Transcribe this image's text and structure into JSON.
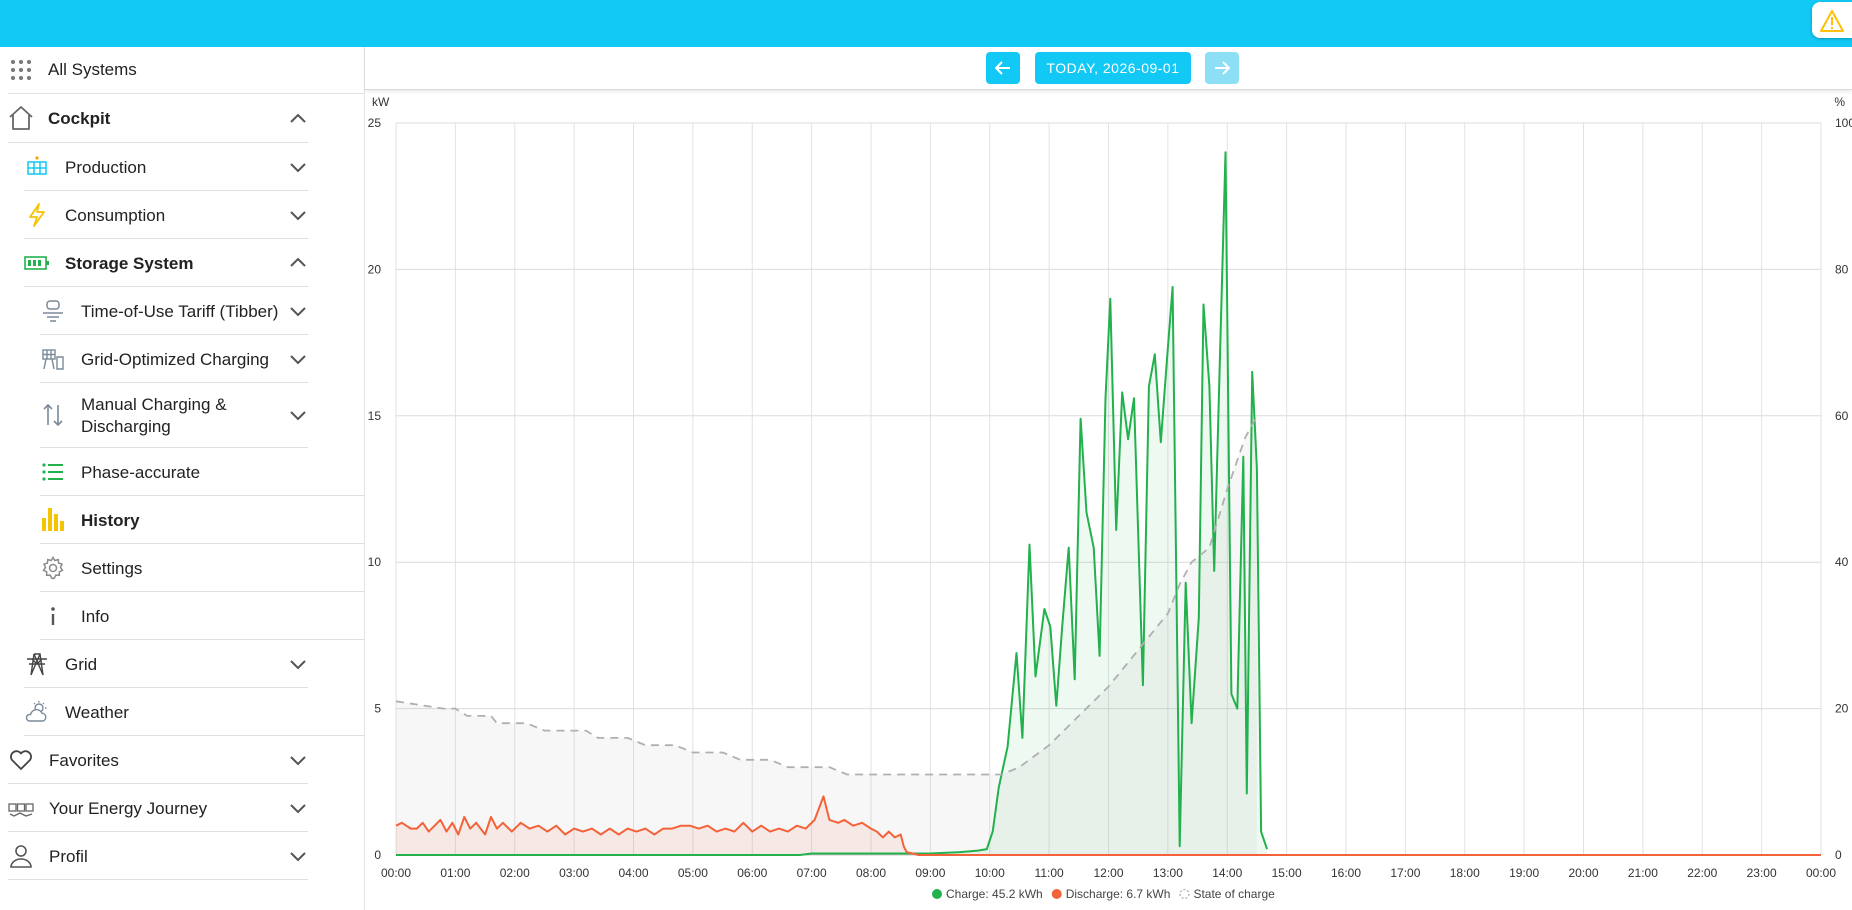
{
  "colors": {
    "accent": "#12c9f5",
    "charge": "#22b14c",
    "discharge": "#f4623a",
    "soc": "#b0b0b0",
    "warning": "#ffc107"
  },
  "header": {
    "warning_icon": "warning-icon"
  },
  "sidebar": {
    "all_systems": "All Systems",
    "cockpit": "Cockpit",
    "production": "Production",
    "consumption": "Consumption",
    "storage_system": "Storage System",
    "tou_tariff": "Time-of-Use Tariff (Tibber)",
    "grid_optimized": "Grid-Optimized Charging",
    "manual_charging_line1": "Manual Charging &",
    "manual_charging_line2": "Discharging",
    "phase_accurate": "Phase-accurate",
    "history": "History",
    "settings": "Settings",
    "info": "Info",
    "grid": "Grid",
    "weather": "Weather",
    "favorites": "Favorites",
    "energy_journey": "Your Energy Journey",
    "profil": "Profil"
  },
  "date_nav": {
    "label": "TODAY, 2026-09-01"
  },
  "chart_data": {
    "type": "line",
    "left_unit": "kW",
    "right_unit": "%",
    "ylim_left": [
      0,
      25
    ],
    "ylim_right": [
      0,
      100
    ],
    "y_ticks_left": [
      "0",
      "5",
      "10",
      "15",
      "20",
      "25"
    ],
    "y_ticks_right": [
      "0",
      "20",
      "40",
      "60",
      "80",
      "100"
    ],
    "x_ticks": [
      "00:00",
      "01:00",
      "02:00",
      "03:00",
      "04:00",
      "05:00",
      "06:00",
      "07:00",
      "08:00",
      "09:00",
      "10:00",
      "11:00",
      "12:00",
      "13:00",
      "14:00",
      "15:00",
      "16:00",
      "17:00",
      "18:00",
      "19:00",
      "20:00",
      "21:00",
      "22:00",
      "23:00",
      "00:00"
    ],
    "x_range_hours": [
      0,
      24
    ],
    "grid": true,
    "legend_position": "bottom",
    "legend": {
      "charge": "Charge: 45.2 kWh",
      "discharge": "Discharge: 6.7 kWh",
      "soc": "State of charge"
    },
    "series": [
      {
        "name": "Charge: 45.2 kWh",
        "axis": "left",
        "points": [
          [
            0,
            0
          ],
          [
            6.8,
            0
          ],
          [
            7.0,
            0.05
          ],
          [
            9.0,
            0.05
          ],
          [
            9.5,
            0.1
          ],
          [
            9.8,
            0.15
          ],
          [
            9.95,
            0.2
          ],
          [
            10.05,
            0.8
          ],
          [
            10.15,
            2.3
          ],
          [
            10.3,
            3.7
          ],
          [
            10.45,
            6.9
          ],
          [
            10.55,
            4.0
          ],
          [
            10.67,
            10.6
          ],
          [
            10.77,
            6.1
          ],
          [
            10.92,
            8.4
          ],
          [
            11.02,
            7.8
          ],
          [
            11.12,
            5.1
          ],
          [
            11.22,
            7.8
          ],
          [
            11.33,
            10.5
          ],
          [
            11.43,
            6.0
          ],
          [
            11.53,
            14.9
          ],
          [
            11.63,
            11.7
          ],
          [
            11.75,
            10.5
          ],
          [
            11.85,
            6.8
          ],
          [
            11.95,
            15.6
          ],
          [
            12.03,
            19.0
          ],
          [
            12.13,
            11.1
          ],
          [
            12.23,
            15.8
          ],
          [
            12.33,
            14.2
          ],
          [
            12.43,
            15.6
          ],
          [
            12.58,
            5.8
          ],
          [
            12.68,
            16.0
          ],
          [
            12.78,
            17.1
          ],
          [
            12.88,
            14.1
          ],
          [
            12.98,
            16.8
          ],
          [
            13.08,
            19.4
          ],
          [
            13.2,
            0.3
          ],
          [
            13.3,
            9.3
          ],
          [
            13.4,
            4.5
          ],
          [
            13.52,
            8.1
          ],
          [
            13.6,
            18.8
          ],
          [
            13.7,
            16.0
          ],
          [
            13.78,
            9.7
          ],
          [
            13.88,
            17.2
          ],
          [
            13.97,
            24.0
          ],
          [
            14.07,
            5.5
          ],
          [
            14.17,
            5.0
          ],
          [
            14.27,
            13.6
          ],
          [
            14.33,
            2.1
          ],
          [
            14.42,
            16.5
          ],
          [
            14.5,
            13.2
          ],
          [
            14.57,
            0.8
          ],
          [
            14.67,
            0.2
          ]
        ]
      },
      {
        "name": "Discharge: 6.7 kWh",
        "axis": "left",
        "points": [
          [
            0,
            1.0
          ],
          [
            0.1,
            1.1
          ],
          [
            0.25,
            0.9
          ],
          [
            0.35,
            0.9
          ],
          [
            0.45,
            1.1
          ],
          [
            0.55,
            0.8
          ],
          [
            0.65,
            1.0
          ],
          [
            0.75,
            1.2
          ],
          [
            0.85,
            0.8
          ],
          [
            0.95,
            1.1
          ],
          [
            1.05,
            0.7
          ],
          [
            1.15,
            1.3
          ],
          [
            1.25,
            0.9
          ],
          [
            1.35,
            1.1
          ],
          [
            1.5,
            0.7
          ],
          [
            1.6,
            1.3
          ],
          [
            1.7,
            0.9
          ],
          [
            1.8,
            1.1
          ],
          [
            1.95,
            0.8
          ],
          [
            2.1,
            1.1
          ],
          [
            2.25,
            0.9
          ],
          [
            2.4,
            1.0
          ],
          [
            2.55,
            0.8
          ],
          [
            2.7,
            1.0
          ],
          [
            2.85,
            0.7
          ],
          [
            3.0,
            0.9
          ],
          [
            3.15,
            0.8
          ],
          [
            3.3,
            0.9
          ],
          [
            3.45,
            0.7
          ],
          [
            3.6,
            0.9
          ],
          [
            3.75,
            0.7
          ],
          [
            3.9,
            0.9
          ],
          [
            4.05,
            0.8
          ],
          [
            4.2,
            0.9
          ],
          [
            4.35,
            0.7
          ],
          [
            4.5,
            0.9
          ],
          [
            4.65,
            0.9
          ],
          [
            4.8,
            1.0
          ],
          [
            4.95,
            1.0
          ],
          [
            5.1,
            0.9
          ],
          [
            5.25,
            1.0
          ],
          [
            5.4,
            0.8
          ],
          [
            5.55,
            0.9
          ],
          [
            5.7,
            0.8
          ],
          [
            5.85,
            1.1
          ],
          [
            6.0,
            0.8
          ],
          [
            6.15,
            1.0
          ],
          [
            6.3,
            0.8
          ],
          [
            6.45,
            0.9
          ],
          [
            6.6,
            0.8
          ],
          [
            6.75,
            1.0
          ],
          [
            6.9,
            0.9
          ],
          [
            7.05,
            1.2
          ],
          [
            7.2,
            2.0
          ],
          [
            7.3,
            1.2
          ],
          [
            7.45,
            1.1
          ],
          [
            7.55,
            1.2
          ],
          [
            7.7,
            1.0
          ],
          [
            7.85,
            1.1
          ],
          [
            8.0,
            0.9
          ],
          [
            8.1,
            0.8
          ],
          [
            8.2,
            0.6
          ],
          [
            8.3,
            0.8
          ],
          [
            8.4,
            0.6
          ],
          [
            8.5,
            0.7
          ],
          [
            8.55,
            0.3
          ],
          [
            8.6,
            0.1
          ],
          [
            8.7,
            0.05
          ],
          [
            8.8,
            0
          ],
          [
            24,
            0
          ]
        ]
      },
      {
        "name": "State of charge",
        "axis": "right",
        "points": [
          [
            0,
            21
          ],
          [
            0.8,
            20
          ],
          [
            1.0,
            20
          ],
          [
            1.2,
            19
          ],
          [
            1.6,
            19
          ],
          [
            1.7,
            18
          ],
          [
            2.2,
            18
          ],
          [
            2.5,
            17
          ],
          [
            3.2,
            17
          ],
          [
            3.4,
            16
          ],
          [
            3.9,
            16
          ],
          [
            4.2,
            15
          ],
          [
            4.7,
            15
          ],
          [
            5.0,
            14
          ],
          [
            5.5,
            14
          ],
          [
            5.8,
            13
          ],
          [
            6.3,
            13
          ],
          [
            6.6,
            12
          ],
          [
            7.3,
            12
          ],
          [
            7.6,
            11
          ],
          [
            8.0,
            11
          ],
          [
            10.2,
            11
          ],
          [
            10.5,
            12
          ],
          [
            11.0,
            15
          ],
          [
            11.5,
            19
          ],
          [
            12.0,
            23
          ],
          [
            12.5,
            28
          ],
          [
            13.0,
            33
          ],
          [
            13.2,
            37
          ],
          [
            13.4,
            40
          ],
          [
            13.7,
            42
          ],
          [
            14.0,
            50
          ],
          [
            14.3,
            57
          ],
          [
            14.5,
            60
          ]
        ]
      }
    ]
  }
}
